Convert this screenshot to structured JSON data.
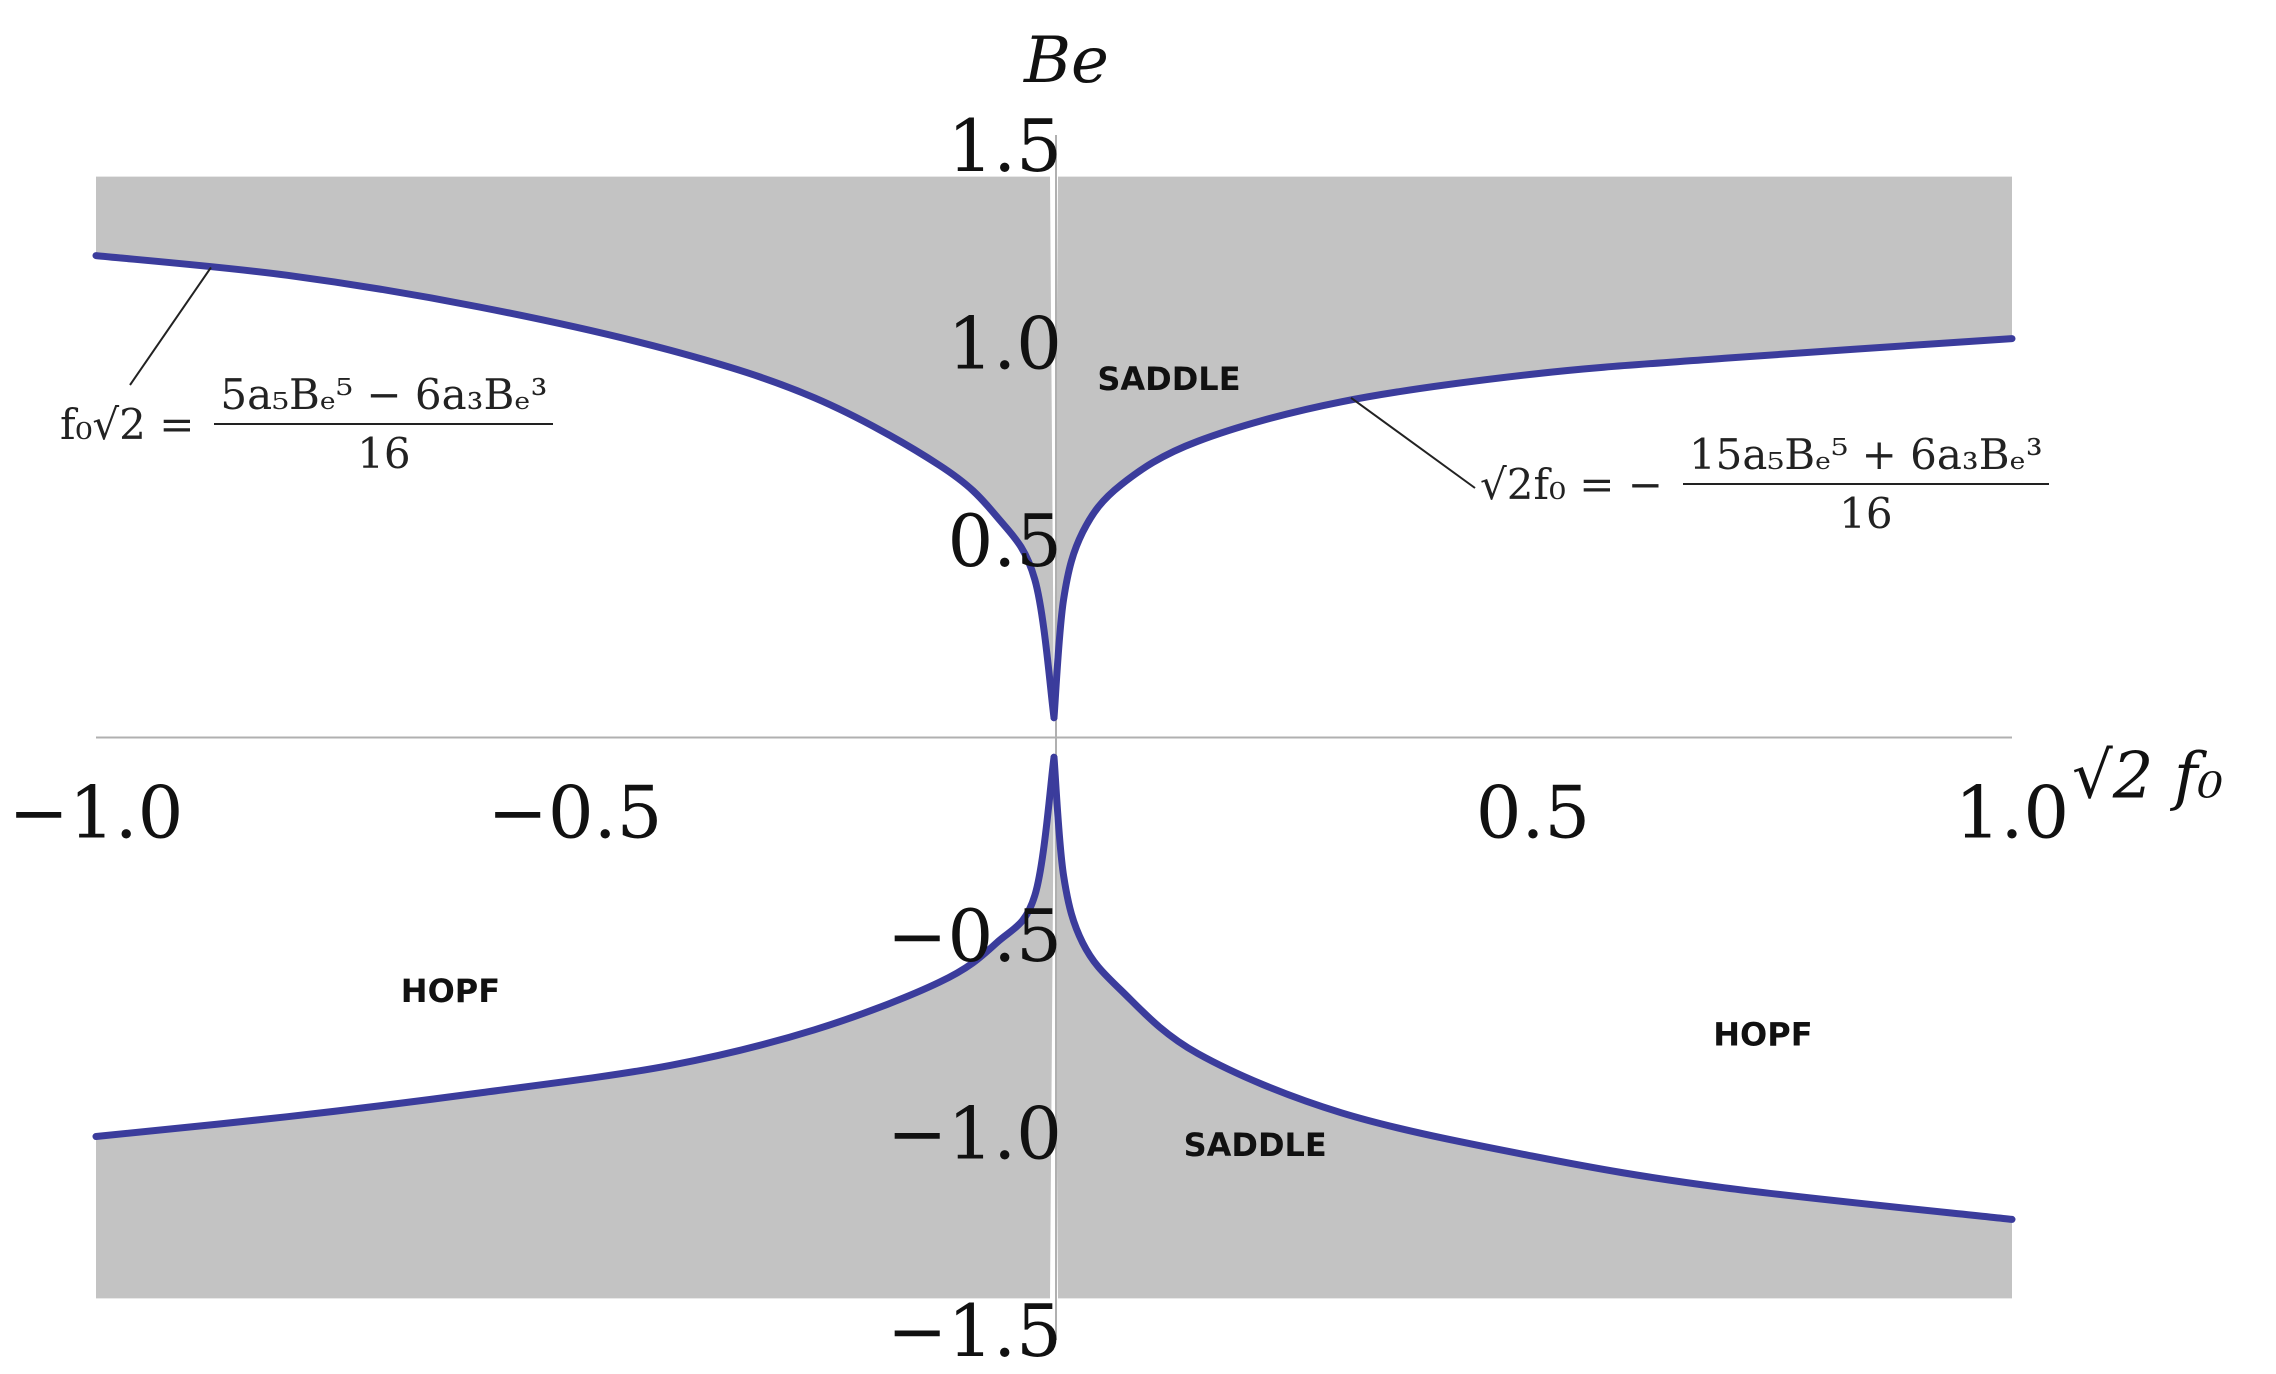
{
  "chart_data": {
    "type": "area",
    "xlabel": "√2 f₀",
    "ylabel": "Be",
    "xlim": [
      -1.0,
      1.0
    ],
    "ylim": [
      -1.5,
      1.5
    ],
    "xticks": [
      "−1.0",
      "−0.5",
      "0.5",
      "1.0"
    ],
    "xtick_values": [
      -1.0,
      -0.5,
      0.5,
      1.0
    ],
    "yticks": [
      "1.5",
      "1.0",
      "0.5",
      "−0.5",
      "−1.0",
      "−1.5"
    ],
    "ytick_values": [
      1.5,
      1.0,
      0.5,
      -0.5,
      -1.0,
      -1.5
    ],
    "grid": false,
    "curves": [
      {
        "equation_lead": "f₀√2 =",
        "equation_num": "5a₅Bₑ⁵ − 6a₃Bₑ³",
        "equation_den": "16",
        "x": [
          -1.0,
          -0.8,
          -0.6,
          -0.4,
          -0.25,
          -0.12,
          -0.06,
          -0.02,
          0.0
        ],
        "y": [
          1.22,
          1.17,
          1.09,
          0.98,
          0.86,
          0.69,
          0.56,
          0.4,
          0.05
        ]
      },
      {
        "equation_lead": "√2f₀ = −",
        "equation_num": "15a₅Bₑ⁵ + 6a₃Bₑ³",
        "equation_den": "16",
        "x": [
          0.0,
          0.01,
          0.03,
          0.07,
          0.15,
          0.3,
          0.5,
          0.7,
          1.0
        ],
        "y": [
          0.05,
          0.35,
          0.52,
          0.64,
          0.75,
          0.85,
          0.92,
          0.96,
          1.01
        ]
      }
    ],
    "curves_lower": [
      {
        "x": [
          -1.0,
          -0.8,
          -0.6,
          -0.4,
          -0.25,
          -0.12,
          -0.06,
          -0.02,
          0.0
        ],
        "y": [
          -1.01,
          -0.96,
          -0.9,
          -0.83,
          -0.74,
          -0.62,
          -0.52,
          -0.4,
          -0.05
        ]
      },
      {
        "x": [
          0.0,
          0.01,
          0.03,
          0.07,
          0.15,
          0.3,
          0.5,
          0.7,
          1.0
        ],
        "y": [
          -0.05,
          -0.35,
          -0.52,
          -0.64,
          -0.8,
          -0.95,
          -1.06,
          -1.14,
          -1.22
        ]
      }
    ],
    "region_labels": [
      {
        "text": "SADDLE",
        "x": 0.12,
        "y": 0.88
      },
      {
        "text": "SADDLE",
        "x": 0.21,
        "y": -1.06
      },
      {
        "text": "HOPF",
        "x": -0.63,
        "y": -0.67
      },
      {
        "text": "HOPF",
        "x": 0.74,
        "y": -0.78
      }
    ],
    "colors": {
      "curve": "#3b3c9c",
      "fill": "#c3c3c3",
      "axis": "#b0b0b0"
    }
  }
}
